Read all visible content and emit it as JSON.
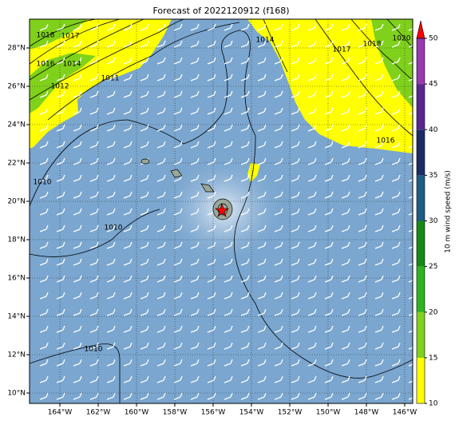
{
  "map": {
    "title": "Forecast of 2022120912 (f168)",
    "lon_ticks": [
      {
        "value": -164,
        "label": "164°W"
      },
      {
        "value": -162,
        "label": "162°W"
      },
      {
        "value": -160,
        "label": "160°W"
      },
      {
        "value": -158,
        "label": "158°W"
      },
      {
        "value": -156,
        "label": "156°W"
      },
      {
        "value": -154,
        "label": "154°W"
      },
      {
        "value": -152,
        "label": "152°W"
      },
      {
        "value": -150,
        "label": "150°W"
      },
      {
        "value": -148,
        "label": "148°W"
      },
      {
        "value": -146,
        "label": "146°W"
      }
    ],
    "lat_ticks": [
      {
        "value": 10,
        "label": "10°N"
      },
      {
        "value": 12,
        "label": "12°N"
      },
      {
        "value": 14,
        "label": "14°N"
      },
      {
        "value": 16,
        "label": "16°N"
      },
      {
        "value": 18,
        "label": "18°N"
      },
      {
        "value": 20,
        "label": "20°N"
      },
      {
        "value": 22,
        "label": "22°N"
      },
      {
        "value": 24,
        "label": "24°N"
      },
      {
        "value": 26,
        "label": "26°N"
      },
      {
        "value": 28,
        "label": "28°N"
      }
    ],
    "colorbar": {
      "label": "10 m wind speed (m/s)",
      "ticks": [
        10,
        15,
        20,
        25,
        30,
        35,
        40,
        45,
        50
      ],
      "colors": [
        "#ffff00",
        "#7fd11b",
        "#2ab51e",
        "#158a16",
        "#1e5b86",
        "#1b2c66",
        "#5b2690",
        "#9a38b3"
      ],
      "extend_color": "#ff0000"
    },
    "contour_labels": [
      "1018",
      "1017",
      "1016",
      "1014",
      "1012",
      "1011",
      "1014",
      "1017",
      "1018",
      "1020",
      "1016",
      "1010",
      "1010",
      "1010"
    ]
  }
}
